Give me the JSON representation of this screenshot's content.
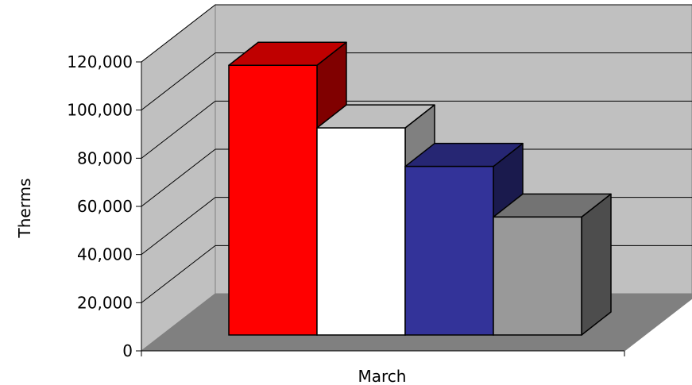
{
  "chart_data": {
    "type": "bar",
    "style": "3d-clustered-column",
    "categories": [
      "March"
    ],
    "series": [
      {
        "values": [
          112000
        ],
        "color": "#ff0000"
      },
      {
        "values": [
          86000
        ],
        "color": "#ffffff"
      },
      {
        "values": [
          70000
        ],
        "color": "#333399"
      },
      {
        "values": [
          49000
        ],
        "color": "#999999"
      }
    ],
    "xlabel": "",
    "ylabel": "Therms",
    "ylim": [
      0,
      120000
    ],
    "yticks": [
      "0",
      "20,000",
      "40,000",
      "60,000",
      "80,000",
      "100,000",
      "120,000"
    ],
    "grid": true,
    "legend": "none",
    "colors": {
      "back_wall": "#c0c0c0",
      "floor": "#808080",
      "grid": "#000000"
    }
  }
}
